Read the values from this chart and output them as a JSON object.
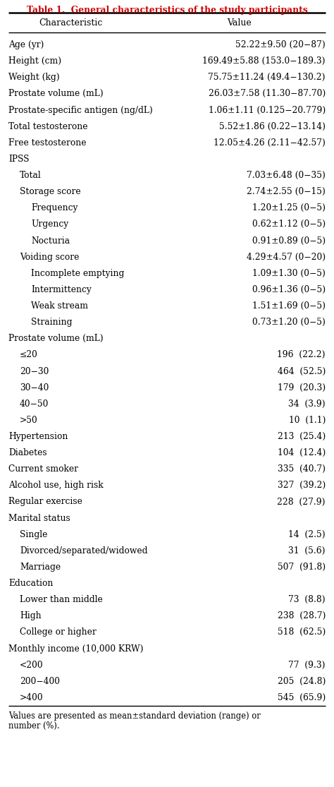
{
  "title": "Table 1.  General characteristics of the study participants",
  "col_headers": [
    "Characteristic",
    "Value"
  ],
  "rows": [
    {
      "label": "Age (yr)",
      "value": "52.22±9.50 (20−87)",
      "indent": 0
    },
    {
      "label": "Height (cm)",
      "value": "169.49±5.88 (153.0−189.3)",
      "indent": 0
    },
    {
      "label": "Weight (kg)",
      "value": "75.75±11.24 (49.4−130.2)",
      "indent": 0
    },
    {
      "label": "Prostate volume (mL)",
      "value": "26.03±7.58 (11.30−87.70)",
      "indent": 0
    },
    {
      "label": "Prostate-specific antigen (ng/dL)",
      "value": "1.06±1.11 (0.125−20.779)",
      "indent": 0
    },
    {
      "label": "Total testosterone",
      "value": "5.52±1.86 (0.22−13.14)",
      "indent": 0
    },
    {
      "label": "Free testosterone",
      "value": "12.05±4.26 (2.11−42.57)",
      "indent": 0
    },
    {
      "label": "IPSS",
      "value": "",
      "indent": 0
    },
    {
      "label": "Total",
      "value": "7.03±6.48 (0−35)",
      "indent": 1
    },
    {
      "label": "Storage score",
      "value": "2.74±2.55 (0−15)",
      "indent": 1
    },
    {
      "label": "Frequency",
      "value": "1.20±1.25 (0−5)",
      "indent": 2
    },
    {
      "label": "Urgency",
      "value": "0.62±1.12 (0−5)",
      "indent": 2
    },
    {
      "label": "Nocturia",
      "value": "0.91±0.89 (0−5)",
      "indent": 2
    },
    {
      "label": "Voiding score",
      "value": "4.29±4.57 (0−20)",
      "indent": 1
    },
    {
      "label": "Incomplete emptying",
      "value": "1.09±1.30 (0−5)",
      "indent": 2
    },
    {
      "label": "Intermittency",
      "value": "0.96±1.36 (0−5)",
      "indent": 2
    },
    {
      "label": "Weak stream",
      "value": "1.51±1.69 (0−5)",
      "indent": 2
    },
    {
      "label": "Straining",
      "value": "0.73±1.20 (0−5)",
      "indent": 2
    },
    {
      "label": "Prostate volume (mL)",
      "value": "",
      "indent": 0
    },
    {
      "label": "≤20",
      "value": "196  (22.2)",
      "indent": 1
    },
    {
      "label": "20−30",
      "value": "464  (52.5)",
      "indent": 1
    },
    {
      "label": "30−40",
      "value": "179  (20.3)",
      "indent": 1
    },
    {
      "label": "40−50",
      "value": "34  (3.9)",
      "indent": 1
    },
    {
      "label": ">50",
      "value": "10  (1.1)",
      "indent": 1
    },
    {
      "label": "Hypertension",
      "value": "213  (25.4)",
      "indent": 0
    },
    {
      "label": "Diabetes",
      "value": "104  (12.4)",
      "indent": 0
    },
    {
      "label": "Current smoker",
      "value": "335  (40.7)",
      "indent": 0
    },
    {
      "label": "Alcohol use, high risk",
      "value": "327  (39.2)",
      "indent": 0
    },
    {
      "label": "Regular exercise",
      "value": "228  (27.9)",
      "indent": 0
    },
    {
      "label": "Marital status",
      "value": "",
      "indent": 0
    },
    {
      "label": "Single",
      "value": "14  (2.5)",
      "indent": 1
    },
    {
      "label": "Divorced/separated/widowed",
      "value": "31  (5.6)",
      "indent": 1
    },
    {
      "label": "Marriage",
      "value": "507  (91.8)",
      "indent": 1
    },
    {
      "label": "Education",
      "value": "",
      "indent": 0
    },
    {
      "label": "Lower than middle",
      "value": "73  (8.8)",
      "indent": 1
    },
    {
      "label": "High",
      "value": "238  (28.7)",
      "indent": 1
    },
    {
      "label": "College or higher",
      "value": "518  (62.5)",
      "indent": 1
    },
    {
      "label": "Monthly income (10,000 KRW)",
      "value": "",
      "indent": 0
    },
    {
      "label": "<200",
      "value": "77  (9.3)",
      "indent": 1
    },
    {
      "label": "200−400",
      "value": "205  (24.8)",
      "indent": 1
    },
    {
      "label": ">400",
      "value": "545  (65.9)",
      "indent": 1
    }
  ],
  "footnote1": "Values are presented as mean±standard deviation (range) or",
  "footnote2": "number (%).",
  "bg_color": "#ffffff",
  "text_color": "#000000",
  "title_color": "#cc0000",
  "font_size": 8.8,
  "header_font_size": 9.0,
  "title_font_size": 8.8
}
